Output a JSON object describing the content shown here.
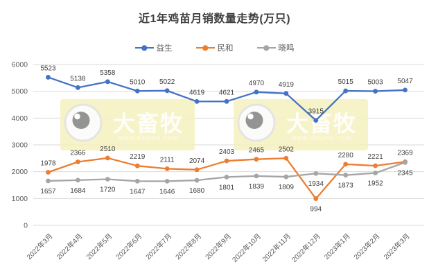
{
  "title": "近1年鸡苗月销数量走势(万只)",
  "watermark": {
    "brand": "大畜牧",
    "url": "www.dxumu.com",
    "bg_color": "#F6F1C1",
    "text_color": "#FFFFFF"
  },
  "chart_data": {
    "type": "line",
    "title": "近1年鸡苗月销数量走势(万只)",
    "categories": [
      "2022年3月",
      "2022年4月",
      "2022年5月",
      "2022年6月",
      "2022年7月",
      "2022年8月",
      "2022年9月",
      "2022年10月",
      "2022年11月",
      "2022年12月",
      "2023年1月",
      "2023年2月",
      "2023年3月"
    ],
    "series": [
      {
        "name": "益生",
        "color": "#4472C4",
        "values": [
          5523,
          5138,
          5358,
          5010,
          5022,
          4619,
          4621,
          4970,
          4919,
          3915,
          5015,
          5003,
          5047
        ],
        "label_side": "above",
        "label_flip_indices": []
      },
      {
        "name": "民和",
        "color": "#ED7D31",
        "values": [
          1978,
          2366,
          2510,
          2219,
          2111,
          2074,
          2403,
          2465,
          2502,
          994,
          2280,
          2221,
          2369
        ],
        "label_side": "above",
        "label_flip_indices": [
          9
        ]
      },
      {
        "name": "晓鸣",
        "color": "#A5A5A5",
        "values": [
          1657,
          1684,
          1720,
          1647,
          1646,
          1680,
          1801,
          1839,
          1809,
          1934,
          1873,
          1952,
          2345
        ],
        "label_side": "below",
        "label_flip_indices": []
      }
    ],
    "xlabel": "",
    "ylabel": "",
    "ylim": [
      0,
      6000
    ],
    "yticks": [
      0,
      1000,
      2000,
      3000,
      4000,
      5000,
      6000
    ],
    "grid": "horizontal",
    "legend_position": "top",
    "marker": "circle",
    "data_labels": true,
    "grid_color": "#D9D9D9",
    "tick_label_color": "#595959",
    "data_label_color": "#404040"
  }
}
